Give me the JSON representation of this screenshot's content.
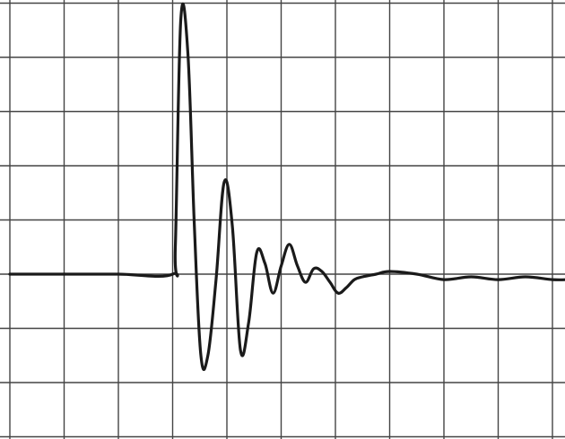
{
  "chart_data": {
    "type": "line",
    "title": "",
    "xlabel": "",
    "ylabel": "",
    "grid": true,
    "xlim": [
      0,
      10.3
    ],
    "ylim": [
      -3,
      5
    ],
    "x_divisions": 10,
    "y_divisions": 8,
    "colors": {
      "grid": "#444444",
      "trace": "#1a1a1a",
      "background": "#ffffff"
    },
    "series": [
      {
        "x": [
          0,
          1.0,
          2.0,
          3.0,
          3.05,
          3.15,
          3.28,
          3.4,
          3.52,
          3.65,
          3.8,
          3.95,
          4.1,
          4.25,
          4.4,
          4.55,
          4.7,
          4.85,
          5.0,
          5.15,
          5.3,
          5.45,
          5.6,
          5.75,
          5.9,
          6.05,
          6.2,
          6.35,
          6.5,
          6.75,
          7.0,
          7.5,
          8.0,
          8.5,
          9.0,
          9.5,
          10.0,
          10.3
        ],
        "y": [
          0,
          0,
          0,
          0,
          0.5,
          4.7,
          4.1,
          0.9,
          -1.5,
          -1.5,
          -0.1,
          1.7,
          0.9,
          -1.4,
          -0.9,
          0.4,
          0.2,
          -0.35,
          0.15,
          0.55,
          0.15,
          -0.15,
          0.1,
          0.05,
          -0.15,
          -0.35,
          -0.25,
          -0.1,
          -0.05,
          0.0,
          0.05,
          0.0,
          -0.1,
          -0.05,
          -0.1,
          -0.05,
          -0.1,
          -0.1
        ]
      }
    ]
  }
}
